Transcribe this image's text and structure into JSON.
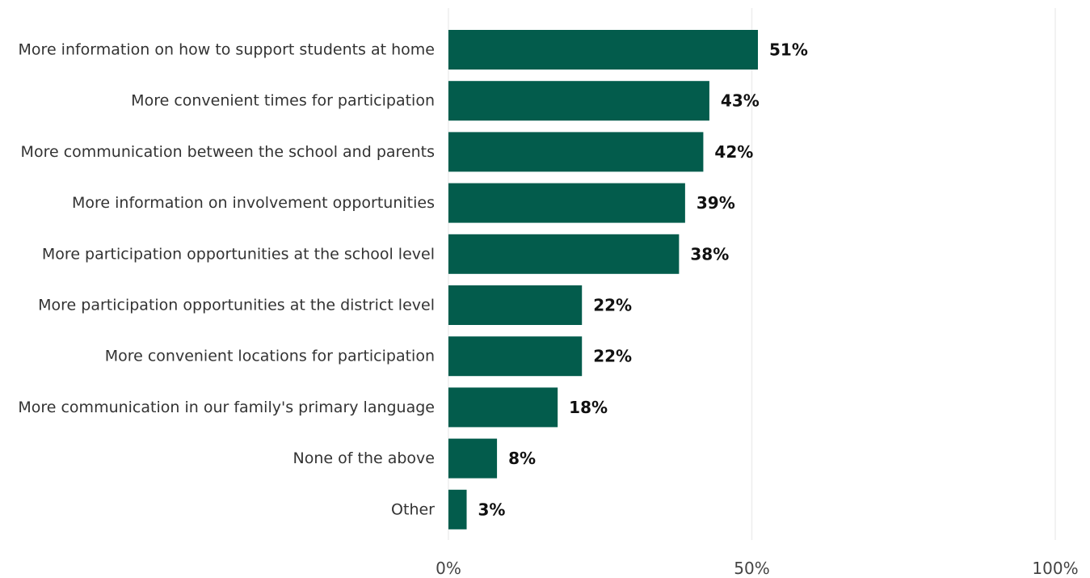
{
  "chart_data": {
    "type": "bar",
    "orientation": "horizontal",
    "title": "",
    "xlabel": "",
    "ylabel": "",
    "categories": [
      "More information on how to support students at home",
      "More convenient times for participation",
      "More communication between the school and parents",
      "More information on involvement opportunities",
      "More participation opportunities at the school level",
      "More participation opportunities at the district level",
      "More convenient locations for participation",
      "More communication in our family's primary language",
      "None of the above",
      "Other"
    ],
    "values": [
      51,
      43,
      42,
      39,
      38,
      22,
      22,
      18,
      8,
      3
    ],
    "value_labels": [
      "51%",
      "43%",
      "42%",
      "39%",
      "38%",
      "22%",
      "22%",
      "18%",
      "8%",
      "3%"
    ],
    "xlim": [
      0,
      100
    ],
    "x_ticks": [
      0,
      50,
      100
    ],
    "x_tick_labels": [
      "0%",
      "50%",
      "100%"
    ],
    "grid": true,
    "legend": "none",
    "bar_color": "#035c4c"
  }
}
